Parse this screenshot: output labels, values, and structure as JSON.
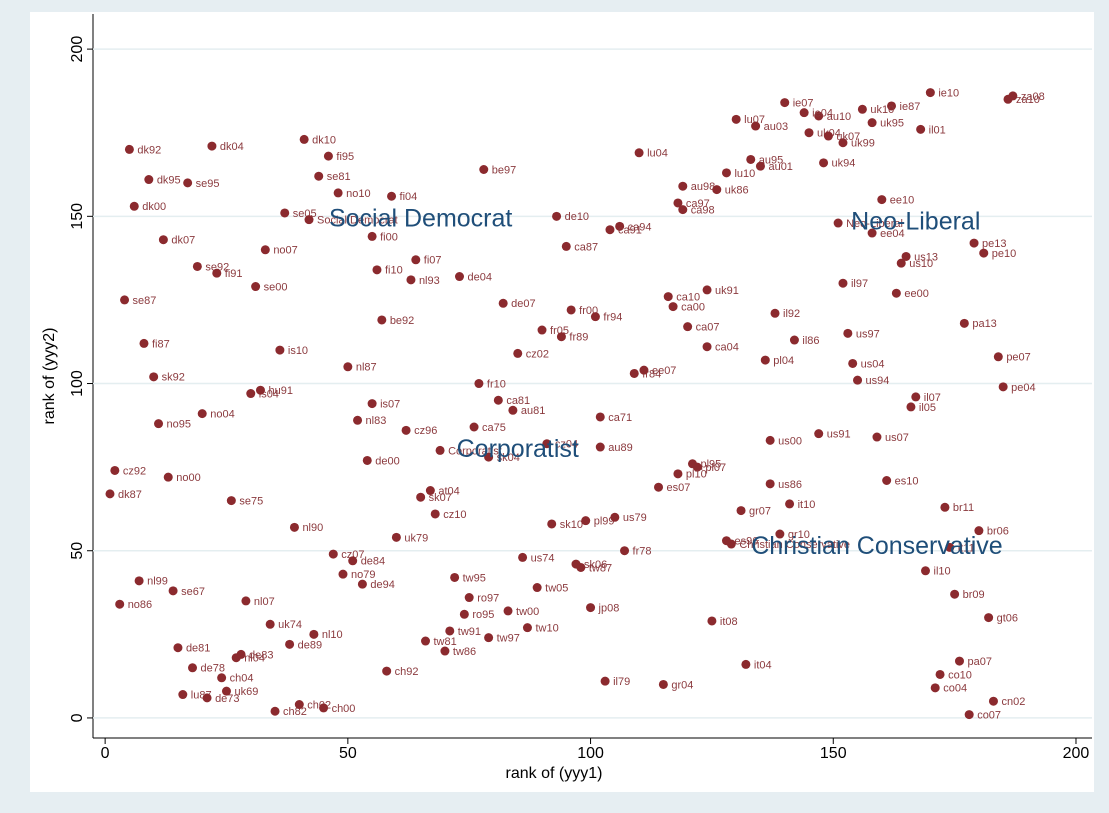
{
  "chart_data": {
    "type": "scatter",
    "xlabel": "rank of (yyy1)",
    "ylabel": "rank of (yyy2)",
    "xlim": [
      -2.5,
      203.3
    ],
    "ylim": [
      -6,
      210.5
    ],
    "xticks": [
      0,
      50,
      100,
      150,
      200
    ],
    "yticks": [
      0,
      50,
      100,
      150,
      200
    ],
    "grid": true,
    "color": "#8b2a2e",
    "label_color": "#8b3a3e",
    "annotation_color": "#1f4e79",
    "point_labels": [
      "dk92",
      "dk04",
      "dk10",
      "fi95",
      "se81",
      "dk95",
      "se95",
      "no10",
      "fi04",
      "dk00",
      "se05",
      "Social Democrat",
      "fi00",
      "dk07",
      "no07",
      "se92",
      "fi91",
      "fi10",
      "fi07",
      "nl93",
      "de04",
      "se00",
      "se87",
      "de07",
      "be92",
      "fi87",
      "is10",
      "nl87",
      "sk92",
      "is04",
      "hu91",
      "no95",
      "no04",
      "nl83",
      "is07",
      "cz96",
      "de00",
      "cz92",
      "no00",
      "dk87",
      "se75",
      "nl90",
      "uk79",
      "cz07",
      "de84",
      "no79",
      "de94",
      "nl99",
      "se67",
      "no86",
      "nl07",
      "uk74",
      "nl10",
      "de89",
      "de81",
      "de78",
      "nl04",
      "de83",
      "ch04",
      "ch92",
      "lu87",
      "de73",
      "uk69",
      "ch82",
      "ch02",
      "ch00",
      "be97",
      "lu04",
      "de10",
      "ca87",
      "ca97",
      "ca98",
      "ca94",
      "ca91",
      "au98",
      "uk86",
      "lu10",
      "au95",
      "au01",
      "lu07",
      "au03",
      "ie07",
      "fr00",
      "fr94",
      "fr05",
      "fr89",
      "cz02",
      "ca10",
      "ca00",
      "ca07",
      "uk91",
      "ca04",
      "fr10",
      "ca81",
      "au81",
      "ca75",
      "ca71",
      "fr84",
      "ee07",
      "Corporatist",
      "sk04",
      "cz04",
      "au89",
      "pl95",
      "pl07",
      "pl10",
      "es07",
      "at04",
      "sk07",
      "cz10",
      "sk10",
      "pl99",
      "us79",
      "us74",
      "fr78",
      "sk06",
      "tw87",
      "tw95",
      "tw05",
      "ro97",
      "ro95",
      "tw00",
      "jp08",
      "tw10",
      "tw91",
      "tw81",
      "tw97",
      "tw86",
      "il79",
      "gr04",
      "it08",
      "it04",
      "ie10",
      "za08",
      "za10",
      "ie87",
      "uk10",
      "au10",
      "ie04",
      "uk95",
      "il01",
      "uk04",
      "uk07",
      "uk99",
      "uk94",
      "ee10",
      "Neo-Liberal",
      "ee04",
      "us13",
      "us10",
      "pe13",
      "pe10",
      "il97",
      "ee00",
      "il92",
      "il86",
      "us97",
      "pa13",
      "pl04",
      "us04",
      "pe07",
      "us94",
      "pe04",
      "il07",
      "il05",
      "us91",
      "us00",
      "us07",
      "us86",
      "es10",
      "it10",
      "gr07",
      "br11",
      "br06",
      "gr10",
      "Christian Conservative",
      "es96",
      "it11",
      "il10",
      "br09",
      "gt06",
      "pa07",
      "co10",
      "co04",
      "cn02",
      "co07"
    ],
    "x": [
      5,
      22,
      41,
      46,
      44,
      9,
      17,
      48,
      59,
      6,
      37,
      42,
      55,
      12,
      33,
      19,
      23,
      56,
      64,
      63,
      73,
      31,
      4,
      82,
      57,
      8,
      36,
      50,
      10,
      30,
      32,
      11,
      20,
      52,
      55,
      62,
      54,
      2,
      13,
      1,
      26,
      39,
      60,
      47,
      51,
      49,
      53,
      7,
      14,
      3,
      29,
      34,
      43,
      38,
      15,
      18,
      27,
      28,
      24,
      58,
      16,
      21,
      25,
      35,
      40,
      45,
      78,
      110,
      93,
      95,
      118,
      119,
      106,
      104,
      119,
      126,
      128,
      133,
      135,
      130,
      134,
      140,
      96,
      101,
      90,
      94,
      85,
      116,
      117,
      120,
      124,
      124,
      77,
      81,
      84,
      76,
      102,
      109,
      111,
      69,
      79,
      91,
      102,
      121,
      122,
      118,
      114,
      67,
      65,
      68,
      92,
      99,
      105,
      86,
      107,
      97,
      98,
      72,
      89,
      75,
      74,
      83,
      100,
      87,
      71,
      66,
      79,
      70,
      103,
      115,
      125,
      132,
      170,
      187,
      186,
      162,
      156,
      147,
      144,
      158,
      168,
      145,
      149,
      152,
      148,
      160,
      151,
      158,
      165,
      164,
      179,
      181,
      152,
      163,
      138,
      142,
      153,
      177,
      136,
      154,
      184,
      155,
      185,
      167,
      166,
      147,
      137,
      159,
      137,
      161,
      141,
      131,
      173,
      180,
      139,
      129,
      128,
      174,
      169,
      175,
      182,
      176,
      172,
      171,
      183,
      178
    ],
    "values": [
      170,
      171,
      173,
      168,
      162,
      161,
      160,
      157,
      156,
      153,
      151,
      149,
      144,
      143,
      140,
      135,
      133,
      134,
      137,
      131,
      132,
      129,
      125,
      124,
      119,
      112,
      110,
      105,
      102,
      97,
      98,
      88,
      91,
      89,
      94,
      86,
      77,
      74,
      72,
      67,
      65,
      57,
      54,
      49,
      47,
      43,
      40,
      41,
      38,
      34,
      35,
      28,
      25,
      22,
      21,
      15,
      18,
      19,
      12,
      14,
      7,
      6,
      8,
      2,
      4,
      3,
      164,
      169,
      150,
      141,
      154,
      152,
      147,
      146,
      159,
      158,
      163,
      167,
      165,
      179,
      177,
      184,
      122,
      120,
      116,
      114,
      109,
      126,
      123,
      117,
      128,
      111,
      100,
      95,
      92,
      87,
      90,
      103,
      104,
      80,
      78,
      82,
      81,
      76,
      75,
      73,
      69,
      68,
      66,
      61,
      58,
      59,
      60,
      48,
      50,
      46,
      45,
      42,
      39,
      36,
      31,
      32,
      33,
      27,
      26,
      23,
      24,
      20,
      11,
      10,
      29,
      16,
      187,
      186,
      185,
      183,
      182,
      180,
      181,
      178,
      176,
      175,
      174,
      172,
      166,
      155,
      148,
      145,
      138,
      136,
      142,
      139,
      130,
      127,
      121,
      113,
      115,
      118,
      107,
      106,
      108,
      101,
      99,
      96,
      93,
      85,
      83,
      84,
      70,
      71,
      64,
      62,
      63,
      56,
      55,
      52,
      53,
      51,
      44,
      37,
      30,
      17,
      13,
      9,
      5,
      1
    ],
    "annotations": [
      {
        "text": "Social Democrat",
        "x": 65,
        "y": 149
      },
      {
        "text": "Neo-Liberal",
        "x": 167,
        "y": 148
      },
      {
        "text": "Corporatist",
        "x": 85,
        "y": 80
      },
      {
        "text": "Christian Conservative",
        "x": 159,
        "y": 51
      }
    ]
  }
}
